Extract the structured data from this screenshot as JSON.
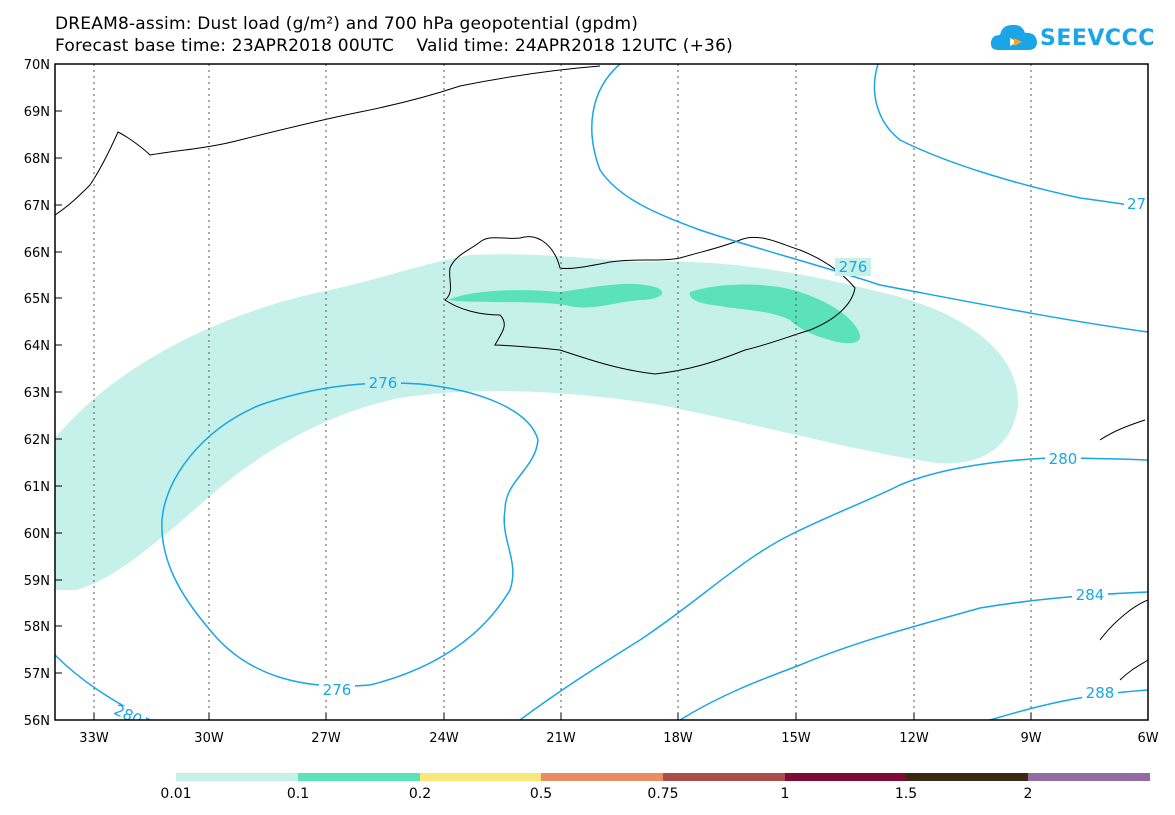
{
  "title": {
    "line1": "DREAM8-assim: Dust load (g/m²) and 700 hPa geopotential (gpdm)",
    "line2": "Forecast base time: 23APR2018 00UTC    Valid time: 24APR2018 12UTC (+36)"
  },
  "logo": {
    "text": "SEEVCCC"
  },
  "axes": {
    "lat_labels": [
      "70N",
      "69N",
      "68N",
      "67N",
      "66N",
      "65N",
      "64N",
      "63N",
      "62N",
      "61N",
      "60N",
      "59N",
      "58N",
      "57N",
      "56N"
    ],
    "lon_labels": [
      "33W",
      "30W",
      "27W",
      "24W",
      "21W",
      "18W",
      "15W",
      "12W",
      "9W",
      "6W"
    ]
  },
  "contours": {
    "labels": [
      "276",
      "276",
      "276",
      "280",
      "280",
      "284",
      "288",
      "27"
    ]
  },
  "colorbar": {
    "labels": [
      "0.01",
      "0.1",
      "0.2",
      "0.5",
      "0.75",
      "1",
      "1.5",
      "2"
    ],
    "colors": [
      "#c6f1ea",
      "#5ce2bb",
      "#f7e87a",
      "#e98c63",
      "#a94f4b",
      "#7e0b38",
      "#3a2814",
      "#936ca3"
    ]
  },
  "colors": {
    "dust_low": "#c6f1ea",
    "dust_mid": "#5ce2bb",
    "contour": "#1aa5e6"
  }
}
